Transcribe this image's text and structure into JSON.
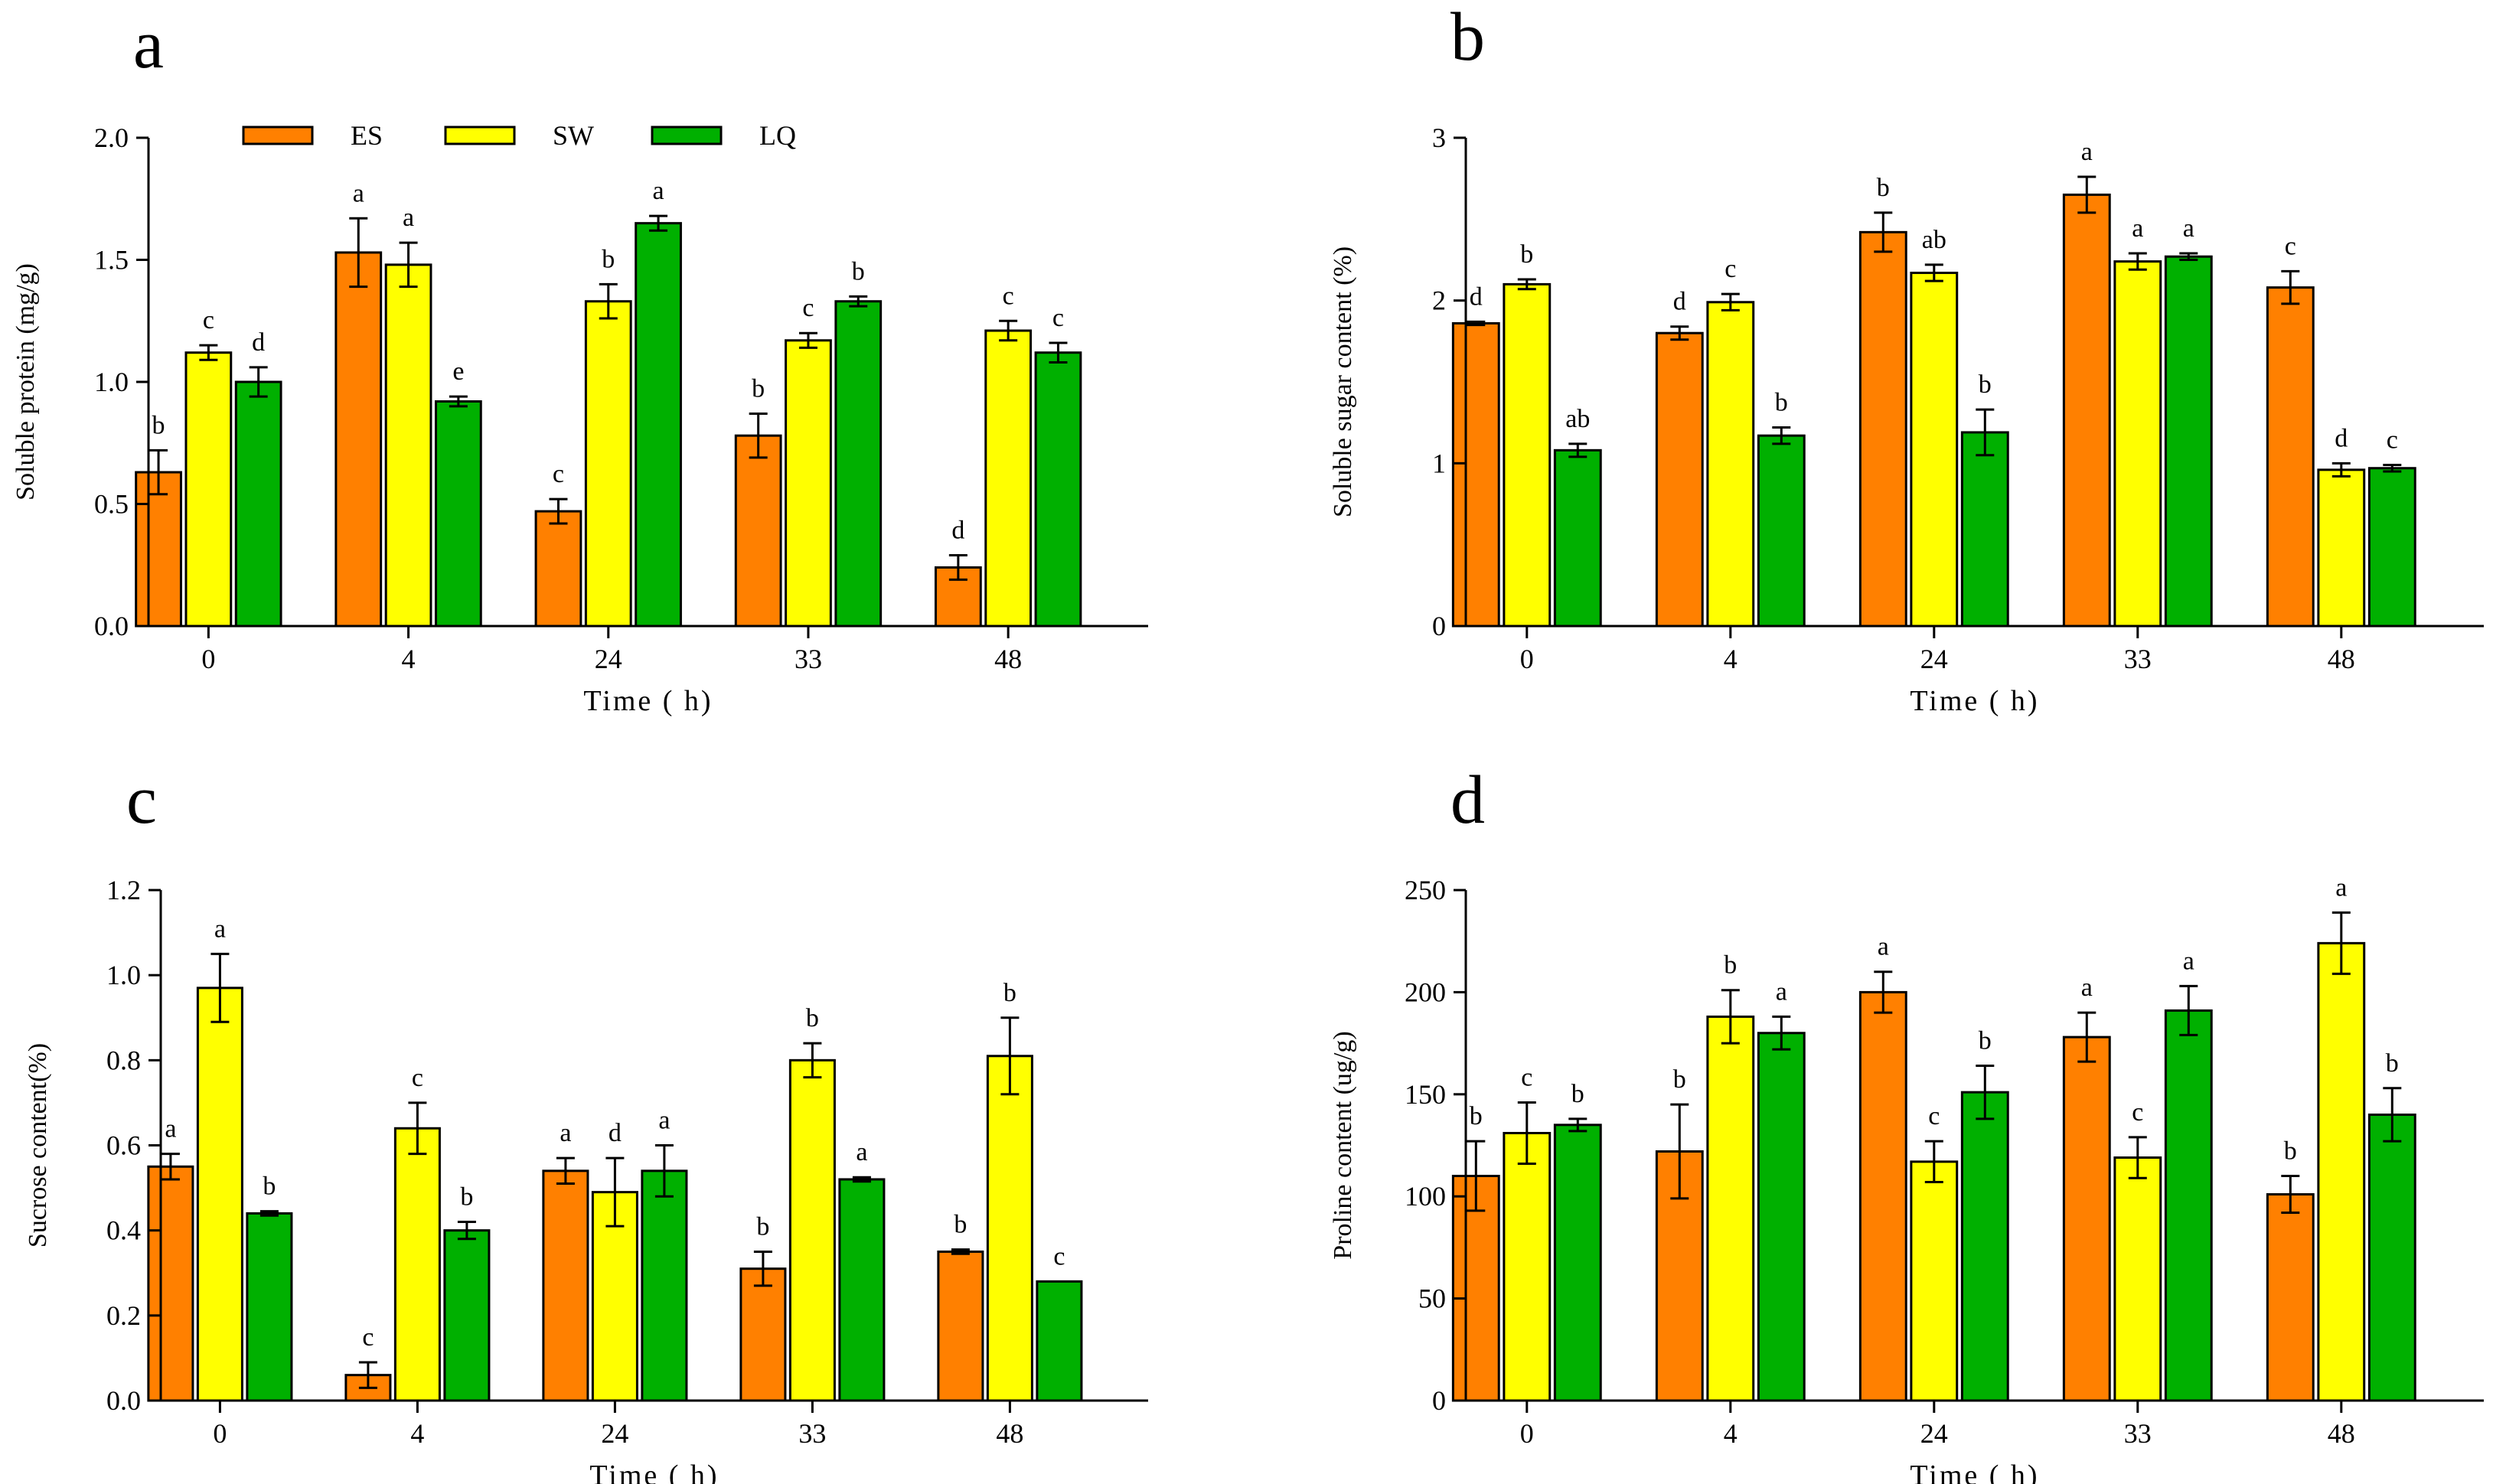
{
  "colors": {
    "ES": "#ff8000",
    "SW": "#ffff00",
    "LQ": "#00b000",
    "axis": "#000000"
  },
  "legend": [
    "ES",
    "SW",
    "LQ"
  ],
  "chart_data": [
    {
      "panel": "a",
      "type": "bar",
      "xlabel": "Time ( h)",
      "ylabel": "Soluble protein (mg/g)",
      "categories": [
        "0",
        "4",
        "24",
        "33",
        "48"
      ],
      "ylim": [
        0,
        2.0
      ],
      "yticks": [
        "0.0",
        "0.5",
        "1.0",
        "1.5",
        "2.0"
      ],
      "series": [
        {
          "name": "ES",
          "values": [
            0.63,
            1.53,
            0.47,
            0.78,
            0.24
          ],
          "errors": [
            0.09,
            0.14,
            0.05,
            0.09,
            0.05
          ],
          "letters": [
            "b",
            "a",
            "c",
            "b",
            "d"
          ]
        },
        {
          "name": "SW",
          "values": [
            1.12,
            1.48,
            1.33,
            1.17,
            1.21
          ],
          "errors": [
            0.03,
            0.09,
            0.07,
            0.03,
            0.04
          ],
          "letters": [
            "c",
            "a",
            "b",
            "c",
            "c"
          ]
        },
        {
          "name": "LQ",
          "values": [
            1.0,
            0.92,
            1.65,
            1.33,
            1.12
          ],
          "errors": [
            0.06,
            0.02,
            0.03,
            0.02,
            0.04
          ],
          "letters": [
            "d",
            "e",
            "a",
            "b",
            "c"
          ]
        }
      ]
    },
    {
      "panel": "b",
      "type": "bar",
      "xlabel": "Time ( h)",
      "ylabel": "Soluble sugar content (%)",
      "categories": [
        "0",
        "4",
        "24",
        "33",
        "48"
      ],
      "ylim": [
        0,
        3
      ],
      "yticks": [
        "0",
        "1",
        "2",
        "3"
      ],
      "series": [
        {
          "name": "ES",
          "values": [
            1.86,
            1.8,
            2.42,
            2.65,
            2.08
          ],
          "errors": [
            0.01,
            0.04,
            0.12,
            0.11,
            0.1
          ],
          "letters": [
            "d",
            "d",
            "b",
            "a",
            "c"
          ]
        },
        {
          "name": "SW",
          "values": [
            2.1,
            1.99,
            2.17,
            2.24,
            0.96
          ],
          "errors": [
            0.03,
            0.05,
            0.05,
            0.05,
            0.04
          ],
          "letters": [
            "b",
            "c",
            "ab",
            "a",
            "d"
          ]
        },
        {
          "name": "LQ",
          "values": [
            1.08,
            1.17,
            1.19,
            2.27,
            0.97
          ],
          "errors": [
            0.04,
            0.05,
            0.14,
            0.02,
            0.02
          ],
          "letters": [
            "ab",
            "b",
            "b",
            "a",
            "c"
          ]
        }
      ]
    },
    {
      "panel": "c",
      "type": "bar",
      "xlabel": "Time ( h)",
      "ylabel": "Sucrose content(%)",
      "categories": [
        "0",
        "4",
        "24",
        "33",
        "48"
      ],
      "ylim": [
        0,
        1.2
      ],
      "yticks": [
        "0.0",
        "0.2",
        "0.4",
        "0.6",
        "0.8",
        "1.0",
        "1.2"
      ],
      "series": [
        {
          "name": "ES",
          "values": [
            0.55,
            0.06,
            0.54,
            0.31,
            0.35
          ],
          "errors": [
            0.03,
            0.03,
            0.03,
            0.04,
            0.005
          ],
          "letters": [
            "a",
            "c",
            "a",
            "b",
            "b"
          ]
        },
        {
          "name": "SW",
          "values": [
            0.97,
            0.64,
            0.49,
            0.8,
            0.81
          ],
          "errors": [
            0.08,
            0.06,
            0.08,
            0.04,
            0.09
          ],
          "letters": [
            "a",
            "c",
            "d",
            "b",
            "b"
          ]
        },
        {
          "name": "LQ",
          "values": [
            0.44,
            0.4,
            0.54,
            0.52,
            0.28
          ],
          "errors": [
            0.005,
            0.02,
            0.06,
            0.005,
            0
          ],
          "letters": [
            "b",
            "b",
            "a",
            "a",
            "c"
          ]
        }
      ]
    },
    {
      "panel": "d",
      "type": "bar",
      "xlabel": "Time ( h)",
      "ylabel": "Proline content (ug/g)",
      "categories": [
        "0",
        "4",
        "24",
        "33",
        "48"
      ],
      "ylim": [
        0,
        250
      ],
      "yticks": [
        "0",
        "50",
        "100",
        "150",
        "200",
        "250"
      ],
      "series": [
        {
          "name": "ES",
          "values": [
            110,
            122,
            200,
            178,
            101
          ],
          "errors": [
            17,
            23,
            10,
            12,
            9
          ],
          "letters": [
            "b",
            "b",
            "a",
            "a",
            "b"
          ]
        },
        {
          "name": "SW",
          "values": [
            131,
            188,
            117,
            119,
            224
          ],
          "errors": [
            15,
            13,
            10,
            10,
            15
          ],
          "letters": [
            "c",
            "b",
            "c",
            "c",
            "a"
          ]
        },
        {
          "name": "LQ",
          "values": [
            135,
            180,
            151,
            191,
            140
          ],
          "errors": [
            3,
            8,
            13,
            12,
            13
          ],
          "letters": [
            "b",
            "a",
            "b",
            "a",
            "b"
          ]
        }
      ]
    }
  ]
}
